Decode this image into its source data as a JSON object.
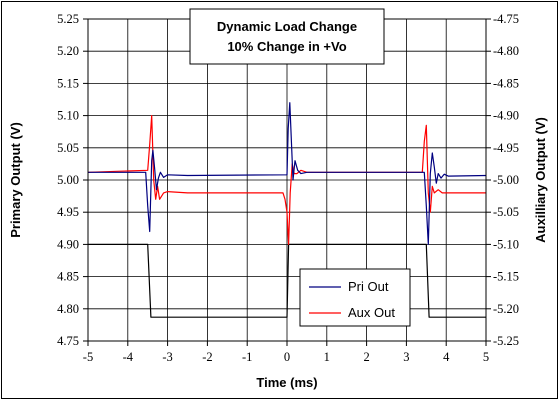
{
  "chart_data": {
    "type": "line",
    "title": "Dynamic Load Change",
    "subtitle": "10% Change in +Vo",
    "xlabel": "Time (ms)",
    "ylabel": "Primary Output (V)",
    "y2label": "Auxilliary Output (V)",
    "xlim": [
      -5,
      5
    ],
    "ylim": [
      4.75,
      5.25
    ],
    "y2lim": [
      -5.25,
      -4.75
    ],
    "x_ticks": [
      "-5",
      "-4",
      "-3",
      "-2",
      "-1",
      "0",
      "1",
      "2",
      "3",
      "4",
      "5"
    ],
    "y_ticks": [
      "4.75",
      "4.80",
      "4.85",
      "4.90",
      "4.95",
      "5.00",
      "5.05",
      "5.10",
      "5.15",
      "5.20",
      "5.25"
    ],
    "y2_ticks": [
      "-5.25",
      "-5.20",
      "-5.15",
      "-5.10",
      "-5.05",
      "-5.00",
      "-4.95",
      "-4.90",
      "-4.85",
      "-4.80",
      "-4.75"
    ],
    "grid": true,
    "legend_position": "bottom-right",
    "series": [
      {
        "name": "Pri Out",
        "axis": "primary",
        "color": "#000080",
        "x": [
          -5,
          -3.55,
          -3.5,
          -3.45,
          -3.4,
          -3.37,
          -3.33,
          -3.28,
          -3.23,
          -3.18,
          -3.1,
          -3.0,
          -2.5,
          0,
          0.03,
          0.07,
          0.11,
          0.15,
          0.2,
          0.27,
          0.35,
          0.5,
          3.45,
          3.5,
          3.55,
          3.6,
          3.65,
          3.7,
          3.75,
          3.8,
          3.87,
          3.95,
          4.05,
          5
        ],
        "y": [
          5.012,
          5.012,
          4.96,
          4.92,
          5.03,
          5.046,
          5.02,
          4.985,
          5.003,
          5.012,
          5.004,
          5.008,
          5.007,
          5.008,
          5.08,
          5.12,
          5.06,
          5.0,
          5.03,
          5.015,
          5.01,
          5.012,
          5.012,
          4.96,
          4.9,
          5.01,
          5.042,
          5.02,
          4.995,
          5.01,
          5.003,
          5.009,
          5.006,
          5.007
        ]
      },
      {
        "name": "Aux Out",
        "axis": "secondary",
        "color": "#ff0000",
        "x": [
          -5,
          -3.5,
          -3.45,
          -3.4,
          -3.35,
          -3.3,
          -3.25,
          -3.2,
          -3.1,
          -3.0,
          -2.5,
          -0.1,
          -0.05,
          0,
          0.04,
          0.08,
          0.13,
          0.18,
          0.25,
          0.35,
          0.5,
          3.4,
          3.45,
          3.5,
          3.55,
          3.6,
          3.65,
          3.7,
          3.8,
          3.9,
          4.0,
          5
        ],
        "y": [
          -4.988,
          -4.985,
          -4.945,
          -4.9,
          -5.0,
          -5.03,
          -5.01,
          -5.03,
          -5.02,
          -5.018,
          -5.02,
          -5.02,
          -5.03,
          -5.05,
          -5.1,
          -5.02,
          -4.975,
          -4.99,
          -4.99,
          -4.985,
          -4.988,
          -4.988,
          -4.94,
          -4.915,
          -5.02,
          -5.05,
          -5.01,
          -5.02,
          -5.015,
          -5.02,
          -5.02,
          -5.02
        ]
      },
      {
        "name": "",
        "axis": "primary",
        "color": "#000000",
        "x": [
          -5,
          -3.5,
          -3.42,
          0,
          0.04,
          3.5,
          3.57,
          5
        ],
        "y": [
          4.9,
          4.9,
          4.787,
          4.787,
          4.9,
          4.9,
          4.787,
          4.787
        ]
      }
    ]
  }
}
